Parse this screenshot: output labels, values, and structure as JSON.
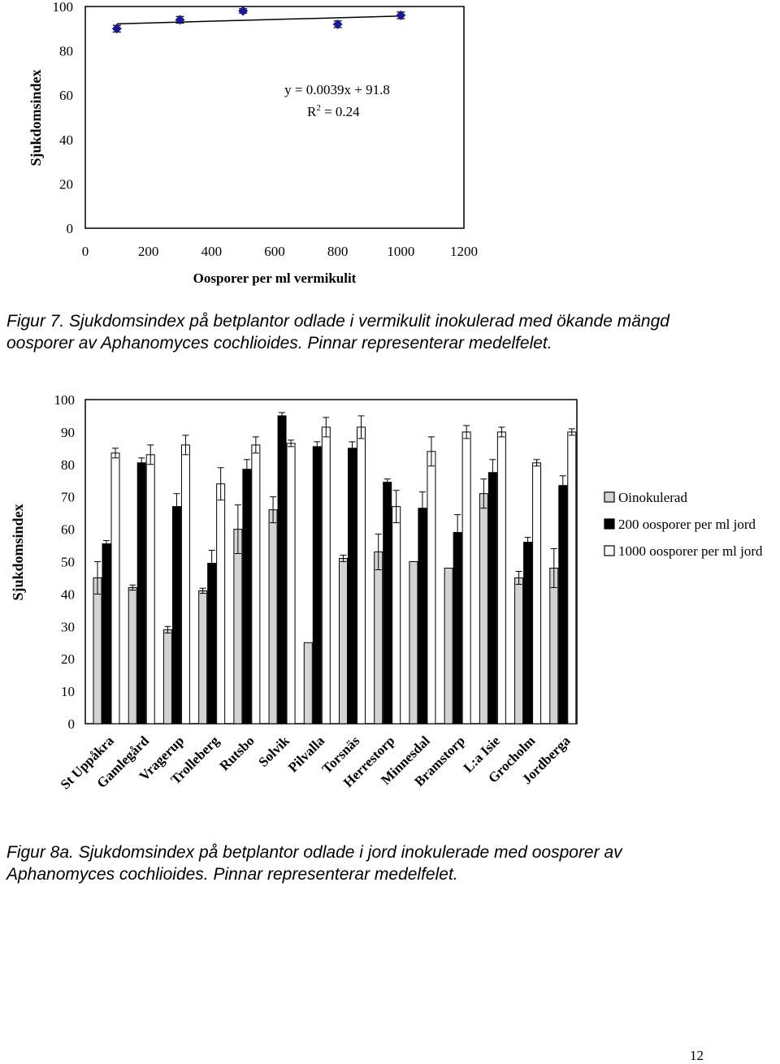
{
  "figure7": {
    "caption_line1": "Figur 7. Sjukdomsindex på betplantor odlade i vermikulit inokulerad med ökande mängd",
    "caption_line2": "oosporer av Aphanomyces cochlioides. Pinnar representerar medelfelet."
  },
  "figure8a": {
    "caption_line1": "Figur 8a. Sjukdomsindex på betplantor odlade i jord inokulerade med oosporer av",
    "caption_line2": "Aphanomyces cochlioides. Pinnar representerar medelfelet."
  },
  "page_number": "12",
  "chart_data": [
    {
      "type": "scatter",
      "title": "",
      "xlabel": "Oosporer per ml vermikulit",
      "ylabel": "Sjukdomsindex",
      "xlim": [
        0,
        1200
      ],
      "ylim": [
        0,
        100
      ],
      "xticks": [
        0,
        200,
        400,
        600,
        800,
        1000,
        1200
      ],
      "yticks": [
        0,
        20,
        40,
        60,
        80,
        100
      ],
      "grid": false,
      "marker_color": "#1a1a8c",
      "points": [
        {
          "x": 100,
          "y": 90,
          "err": 1.5
        },
        {
          "x": 300,
          "y": 94,
          "err": 1.5
        },
        {
          "x": 500,
          "y": 98,
          "err": 1.0
        },
        {
          "x": 800,
          "y": 92,
          "err": 1.5
        },
        {
          "x": 1000,
          "y": 96,
          "err": 1.5
        }
      ],
      "trendline": {
        "slope": 0.0039,
        "intercept": 91.8,
        "x_range": [
          100,
          1000
        ]
      },
      "annotations": {
        "equation": "y = 0.0039x + 91.8",
        "r2_prefix": "R",
        "r2_sup": "2",
        "r2_value": " = 0.24"
      }
    },
    {
      "type": "bar",
      "title": "",
      "xlabel": "",
      "ylabel": "Sjukdomsindex",
      "ylim": [
        0,
        100
      ],
      "yticks": [
        0,
        10,
        20,
        30,
        40,
        50,
        60,
        70,
        80,
        90,
        100
      ],
      "grid": false,
      "legend_position": "right",
      "categories": [
        "St Uppåkra",
        "Gamlegård",
        "Vragerup",
        "Trolleberg",
        "Rutsbo",
        "Solvik",
        "Pilvalla",
        "Torsnäs",
        "Herrestorp",
        "Minnesdal",
        "Bramstorp",
        "L:a Isie",
        "Grocholm",
        "Jordberga"
      ],
      "series": [
        {
          "name": "Oinokulerad",
          "fill": "#d3d3d3",
          "values": [
            45,
            42,
            29,
            41,
            60,
            66,
            25,
            51,
            53,
            50,
            48,
            71,
            45,
            48
          ],
          "errors": [
            5,
            0.8,
            1,
            0.8,
            7.5,
            4,
            0,
            1,
            5.5,
            0,
            0,
            4.5,
            2,
            6
          ]
        },
        {
          "name": "200 oosporer per ml jord",
          "fill": "#000000",
          "values": [
            55.5,
            80.5,
            67,
            49.5,
            78.5,
            95,
            85.5,
            85,
            74.5,
            66.5,
            59,
            77.5,
            56,
            73.5
          ],
          "errors": [
            1,
            1.5,
            4,
            4,
            3,
            1,
            1.5,
            2,
            1,
            5,
            5.5,
            4,
            1.5,
            3
          ]
        },
        {
          "name": "1000 oosporer per ml jord",
          "fill": "#ffffff",
          "values": [
            83.5,
            83,
            86,
            74,
            86,
            86.5,
            91.5,
            91.5,
            67,
            84,
            90,
            90,
            80.5,
            90
          ],
          "errors": [
            1.5,
            3,
            3,
            5,
            2.5,
            1,
            3,
            3.5,
            5,
            4.5,
            2,
            1.5,
            1,
            1
          ]
        }
      ]
    }
  ]
}
